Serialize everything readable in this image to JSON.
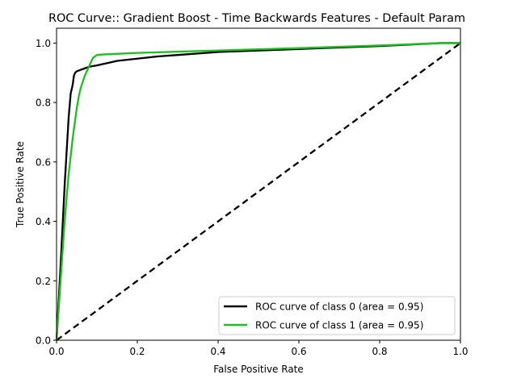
{
  "chart_data": {
    "type": "line",
    "title": "ROC Curve:: Gradient Boost - Time Backwards Features - Default Param",
    "xlabel": "False Positive Rate",
    "ylabel": "True Positive Rate",
    "xlim": [
      0.0,
      1.0
    ],
    "ylim": [
      0.0,
      1.05
    ],
    "x_ticks": [
      "0.0",
      "0.2",
      "0.4",
      "0.6",
      "0.8",
      "1.0"
    ],
    "y_ticks": [
      "0.0",
      "0.2",
      "0.4",
      "0.6",
      "0.8",
      "1.0"
    ],
    "grid": false,
    "legend_position": "lower-right",
    "series": [
      {
        "name": "ROC curve of class 0 (area = 0.95)",
        "color": "#000000",
        "x": [
          0.0,
          0.01,
          0.02,
          0.03,
          0.035,
          0.04,
          0.043,
          0.046,
          0.05,
          0.06,
          0.07,
          0.08,
          0.1,
          0.15,
          0.25,
          0.3,
          0.4,
          0.6,
          0.8,
          0.95,
          1.0
        ],
        "y": [
          0.0,
          0.25,
          0.52,
          0.75,
          0.83,
          0.86,
          0.89,
          0.9,
          0.905,
          0.91,
          0.915,
          0.92,
          0.925,
          0.94,
          0.955,
          0.96,
          0.97,
          0.98,
          0.99,
          1.0,
          1.0
        ]
      },
      {
        "name": "ROC curve of class 1 (area = 0.95)",
        "color": "#1dbf1d",
        "x": [
          0.0,
          0.01,
          0.02,
          0.03,
          0.04,
          0.05,
          0.055,
          0.06,
          0.07,
          0.08,
          0.09,
          0.1,
          0.12,
          0.2,
          0.4,
          0.6,
          0.8,
          0.95,
          1.0
        ],
        "y": [
          0.0,
          0.2,
          0.4,
          0.56,
          0.68,
          0.78,
          0.82,
          0.85,
          0.89,
          0.92,
          0.95,
          0.96,
          0.962,
          0.967,
          0.975,
          0.983,
          0.992,
          1.0,
          1.0
        ]
      },
      {
        "name": "",
        "color": "#000000",
        "style": "dashed",
        "x": [
          0.0,
          1.0
        ],
        "y": [
          0.0,
          1.0
        ]
      }
    ]
  }
}
